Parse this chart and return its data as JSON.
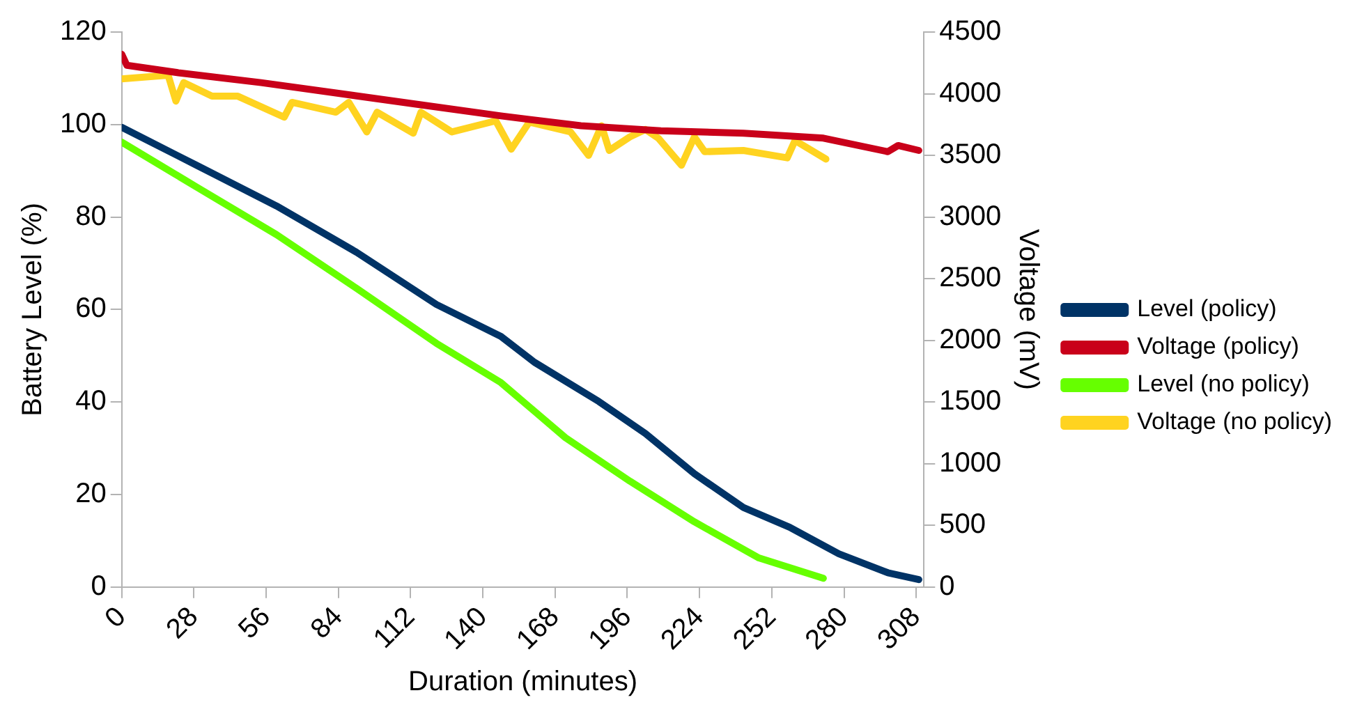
{
  "chart_data": {
    "type": "line",
    "xlabel": "Duration (minutes)",
    "ylabel": "Battery Level (%)",
    "y2label": "Voltage (mV)",
    "xlim": [
      0,
      311
    ],
    "xticks": [
      0,
      28,
      56,
      84,
      112,
      140,
      168,
      196,
      224,
      252,
      280,
      308
    ],
    "ylim": [
      0,
      120
    ],
    "yticks": [
      0,
      20,
      40,
      60,
      80,
      100,
      120
    ],
    "y2lim": [
      0,
      4500
    ],
    "y2ticks": [
      0,
      500,
      1000,
      1500,
      2000,
      2500,
      3000,
      3500,
      4000,
      4500
    ],
    "grid": false,
    "legend": "right",
    "marker": "none",
    "line_style": "solid",
    "series": [
      {
        "name": "Level (policy)",
        "color": "#003366",
        "x": [
          0,
          29,
          60,
          91,
          122,
          147,
          160,
          185,
          203,
          222,
          241,
          259,
          278,
          297,
          309
        ],
        "values": [
          99.4,
          91.2,
          82.4,
          72.4,
          61.1,
          54.2,
          48.6,
          40.1,
          33.2,
          24.5,
          17.2,
          12.9,
          7.2,
          3.1,
          1.6
        ]
      },
      {
        "name": "Voltage (policy)",
        "color": "#c9001a",
        "axis": "y2",
        "x": [
          0,
          2,
          22,
          54,
          85,
          116,
          147,
          178,
          209,
          241,
          272,
          297,
          301,
          309
        ],
        "values": [
          4320,
          4230,
          4170,
          4090,
          4000,
          3910,
          3820,
          3740,
          3700,
          3680,
          3640,
          3530,
          3580,
          3540
        ]
      },
      {
        "name": "Level (no policy)",
        "color": "#66ff00",
        "x": [
          0,
          29,
          60,
          91,
          122,
          147,
          172,
          197,
          222,
          247,
          272
        ],
        "values": [
          96.2,
          86.5,
          76.2,
          64.6,
          52.7,
          44.2,
          32.3,
          22.9,
          14.1,
          6.3,
          1.9
        ]
      },
      {
        "name": "Voltage (no policy)",
        "color": "#ffd320",
        "axis": "y2",
        "x": [
          0,
          18,
          21,
          24,
          35,
          45,
          63,
          66,
          83,
          88,
          95,
          99,
          113,
          116,
          128,
          145,
          151,
          158,
          174,
          181,
          186,
          189,
          197,
          203,
          208,
          217,
          222,
          226,
          241,
          258,
          261,
          273
        ],
        "values": [
          4120,
          4150,
          3940,
          4090,
          3980,
          3980,
          3810,
          3930,
          3850,
          3930,
          3690,
          3850,
          3680,
          3850,
          3690,
          3780,
          3550,
          3770,
          3690,
          3500,
          3740,
          3540,
          3650,
          3710,
          3640,
          3420,
          3650,
          3530,
          3540,
          3480,
          3620,
          3470
        ]
      }
    ]
  }
}
